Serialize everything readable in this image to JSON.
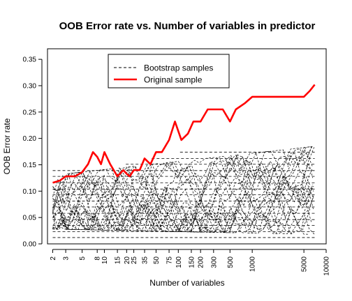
{
  "chart_data": {
    "type": "line",
    "title": "OOB Error rate vs. Number of variables in predictor",
    "xlabel": "Number of variables",
    "ylabel": "OOB Error rate",
    "x_scale": "log",
    "xlim": [
      1.7,
      10000
    ],
    "ylim": [
      0,
      0.37
    ],
    "x_ticks": [
      2,
      3,
      5,
      8,
      10,
      15,
      20,
      25,
      35,
      50,
      75,
      100,
      150,
      200,
      300,
      500,
      1000,
      5000,
      10000
    ],
    "x_tick_labels": [
      "2",
      "3",
      "5",
      "8",
      "10",
      "15",
      "20",
      "25",
      "35",
      "50",
      "75",
      "100",
      "150",
      "200",
      "300",
      "500",
      "1000",
      "5000",
      "10000"
    ],
    "y_ticks": [
      0.0,
      0.05,
      0.1,
      0.15,
      0.2,
      0.25,
      0.3,
      0.35
    ],
    "y_tick_labels": [
      "0.00",
      "0.05",
      "0.10",
      "0.15",
      "0.20",
      "0.25",
      "0.30",
      "0.35"
    ],
    "grid": false,
    "legend": {
      "position": "top-left",
      "entries": [
        {
          "label": "Bootstrap samples",
          "color": "#000000",
          "style": "dashed"
        },
        {
          "label": "Original sample",
          "color": "#ff0000",
          "style": "solid"
        }
      ]
    },
    "series": [
      {
        "name": "Original sample",
        "color": "#ff0000",
        "style": "solid",
        "x": [
          2,
          2.5,
          3,
          4,
          5,
          6,
          7,
          8,
          9,
          10,
          12,
          15,
          18,
          20,
          22,
          25,
          30,
          35,
          42,
          50,
          60,
          75,
          90,
          110,
          135,
          160,
          200,
          250,
          300,
          400,
          500,
          600,
          800,
          1000,
          1200,
          1500,
          1800,
          2000,
          2500,
          3000,
          3500,
          4000,
          5000,
          6000,
          7000
        ],
        "y": [
          0.116,
          0.12,
          0.128,
          0.128,
          0.136,
          0.151,
          0.174,
          0.165,
          0.151,
          0.174,
          0.151,
          0.128,
          0.14,
          0.133,
          0.128,
          0.14,
          0.14,
          0.162,
          0.151,
          0.174,
          0.174,
          0.197,
          0.232,
          0.197,
          0.209,
          0.232,
          0.232,
          0.255,
          0.255,
          0.255,
          0.232,
          0.255,
          0.267,
          0.279,
          0.279,
          0.279,
          0.279,
          0.279,
          0.279,
          0.279,
          0.279,
          0.279,
          0.279,
          0.29,
          0.302
        ]
      },
      {
        "name": "Bootstrap samples",
        "color": "#000000",
        "style": "dashed",
        "x_range": [
          2,
          7000
        ],
        "y_range": [
          0.01,
          0.2
        ],
        "levels": [
          0.012,
          0.023,
          0.035,
          0.046,
          0.058,
          0.07,
          0.081,
          0.093,
          0.104,
          0.116,
          0.128,
          0.139,
          0.151,
          0.162,
          0.174
        ]
      }
    ]
  }
}
